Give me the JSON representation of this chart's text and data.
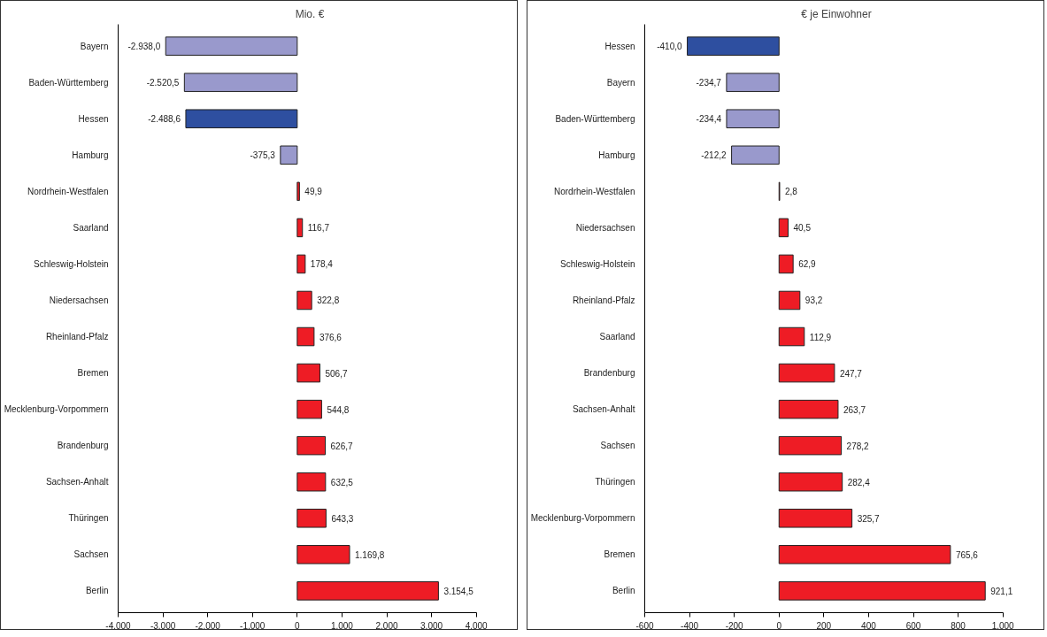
{
  "chart_data": [
    {
      "type": "bar",
      "orientation": "horizontal",
      "title": "Mio. €",
      "categories": [
        "Bayern",
        "Baden-Württemberg",
        "Hessen",
        "Hamburg",
        "Nordrhein-Westfalen",
        "Saarland",
        "Schleswig-Holstein",
        "Niedersachsen",
        "Rheinland-Pfalz",
        "Bremen",
        "Mecklenburg-Vorpommern",
        "Brandenburg",
        "Sachsen-Anhalt",
        "Thüringen",
        "Sachsen",
        "Berlin"
      ],
      "values": [
        -2938.0,
        -2520.5,
        -2488.6,
        -375.3,
        49.9,
        116.7,
        178.4,
        322.8,
        376.6,
        506.7,
        544.8,
        626.7,
        632.5,
        643.3,
        1169.8,
        3154.5
      ],
      "colors": [
        "#9999cc",
        "#9999cc",
        "#2e4fa0",
        "#9999cc",
        "#ee1c25",
        "#ee1c25",
        "#ee1c25",
        "#ee1c25",
        "#ee1c25",
        "#ee1c25",
        "#ee1c25",
        "#ee1c25",
        "#ee1c25",
        "#ee1c25",
        "#ee1c25",
        "#ee1c25"
      ],
      "value_labels": [
        "-2.938,0",
        "-2.520,5",
        "-2.488,6",
        "-375,3",
        "49,9",
        "116,7",
        "178,4",
        "322,8",
        "376,6",
        "506,7",
        "544,8",
        "626,7",
        "632,5",
        "643,3",
        "1.169,8",
        "3.154,5"
      ],
      "xlim": [
        -4000,
        4000
      ],
      "xticks": [
        {
          "value": -4000,
          "label": "-4.000"
        },
        {
          "value": -3000,
          "label": "-3.000"
        },
        {
          "value": -2000,
          "label": "-2.000"
        },
        {
          "value": -1000,
          "label": "-1.000"
        },
        0,
        {
          "value": 1000,
          "label": "1.000"
        },
        {
          "value": 2000,
          "label": "2.000"
        },
        {
          "value": 3000,
          "label": "3.000"
        },
        {
          "value": 4000,
          "label": "4.000"
        }
      ],
      "grid": false,
      "legend": false
    },
    {
      "type": "bar",
      "orientation": "horizontal",
      "title": "€ je Einwohner",
      "categories": [
        "Hessen",
        "Bayern",
        "Baden-Württemberg",
        "Hamburg",
        "Nordrhein-Westfalen",
        "Niedersachsen",
        "Schleswig-Holstein",
        "Rheinland-Pfalz",
        "Saarland",
        "Brandenburg",
        "Sachsen-Anhalt",
        "Sachsen",
        "Thüringen",
        "Mecklenburg-Vorpommern",
        "Bremen",
        "Berlin"
      ],
      "values": [
        -410.0,
        -234.7,
        -234.4,
        -212.2,
        2.8,
        40.5,
        62.9,
        93.2,
        112.9,
        247.7,
        263.7,
        278.2,
        282.4,
        325.7,
        765.6,
        921.1
      ],
      "colors": [
        "#2e4fa0",
        "#9999cc",
        "#9999cc",
        "#9999cc",
        "#ee1c25",
        "#ee1c25",
        "#ee1c25",
        "#ee1c25",
        "#ee1c25",
        "#ee1c25",
        "#ee1c25",
        "#ee1c25",
        "#ee1c25",
        "#ee1c25",
        "#ee1c25",
        "#ee1c25"
      ],
      "value_labels": [
        "-410,0",
        "-234,7",
        "-234,4",
        "-212,2",
        "2,8",
        "40,5",
        "62,9",
        "93,2",
        "112,9",
        "247,7",
        "263,7",
        "278,2",
        "282,4",
        "325,7",
        "765,6",
        "921,1"
      ],
      "xlim": [
        -600,
        1000
      ],
      "xticks": [
        -600,
        -400,
        -200,
        0,
        200,
        400,
        600,
        800,
        {
          "value": 1000,
          "label": "1.000"
        }
      ],
      "grid": false,
      "legend": false
    }
  ]
}
